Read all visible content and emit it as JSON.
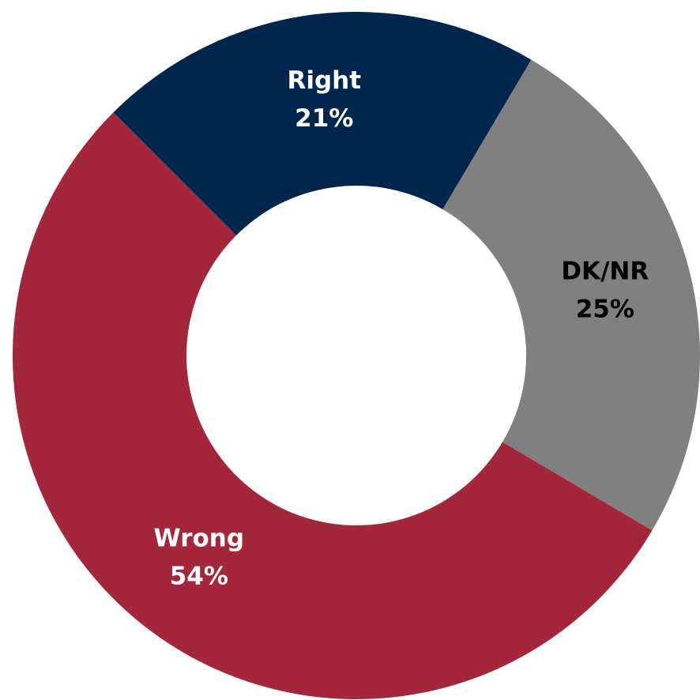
{
  "chart_data": {
    "type": "donut",
    "categories": [
      "Right",
      "DK/NR",
      "Wrong"
    ],
    "values": [
      21,
      25,
      54
    ],
    "value_labels": [
      "21%",
      "25%",
      "54%"
    ],
    "colors": [
      "#00264d",
      "#808080",
      "#a3263a"
    ],
    "label_colors": [
      "#ffffff",
      "#000000",
      "#ffffff"
    ]
  }
}
